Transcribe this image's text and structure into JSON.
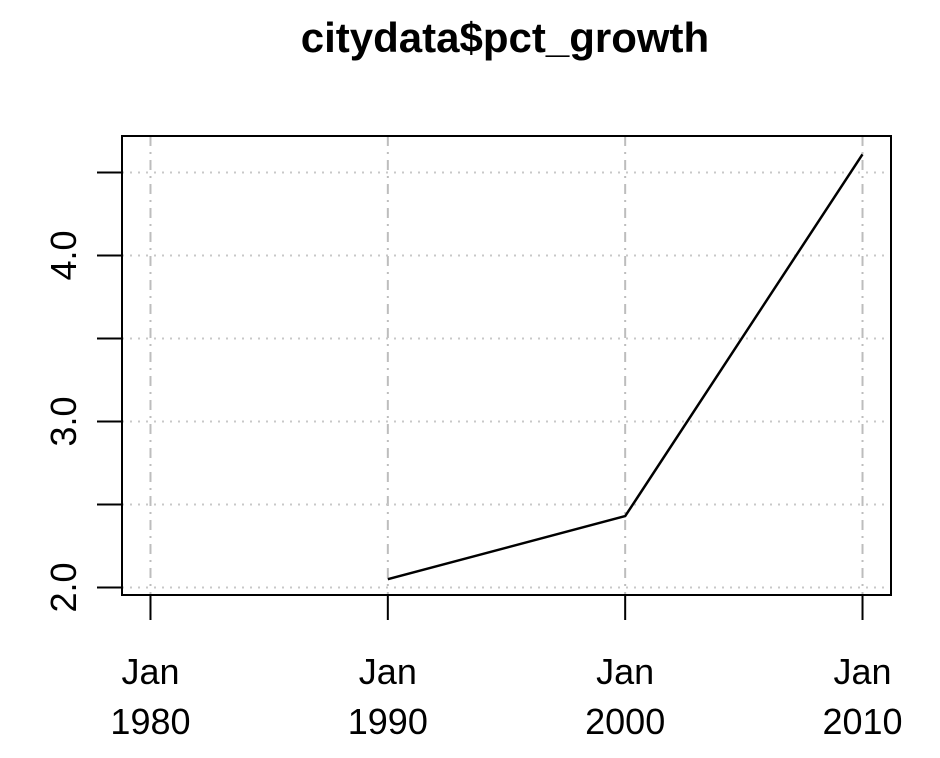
{
  "chart_data": {
    "type": "line",
    "title": "citydata$pct_growth",
    "xlabel": "",
    "ylabel": "",
    "x": [
      1980,
      1990,
      2000,
      2010
    ],
    "x_tick_labels": [
      {
        "month": "Jan",
        "year": "1980"
      },
      {
        "month": "Jan",
        "year": "1990"
      },
      {
        "month": "Jan",
        "year": "2000"
      },
      {
        "month": "Jan",
        "year": "2010"
      }
    ],
    "series": [
      {
        "name": "pct_growth",
        "x": [
          1990,
          2000,
          2010
        ],
        "values": [
          2.05,
          2.43,
          4.61
        ]
      }
    ],
    "y_ticks": [
      2.0,
      2.5,
      3.0,
      3.5,
      4.0,
      4.5
    ],
    "y_tick_labels": [
      "2.0",
      "3.0",
      "4.0"
    ],
    "xlim": [
      1978.8,
      2011.2
    ],
    "ylim": [
      1.955,
      4.72
    ],
    "grid": true
  }
}
